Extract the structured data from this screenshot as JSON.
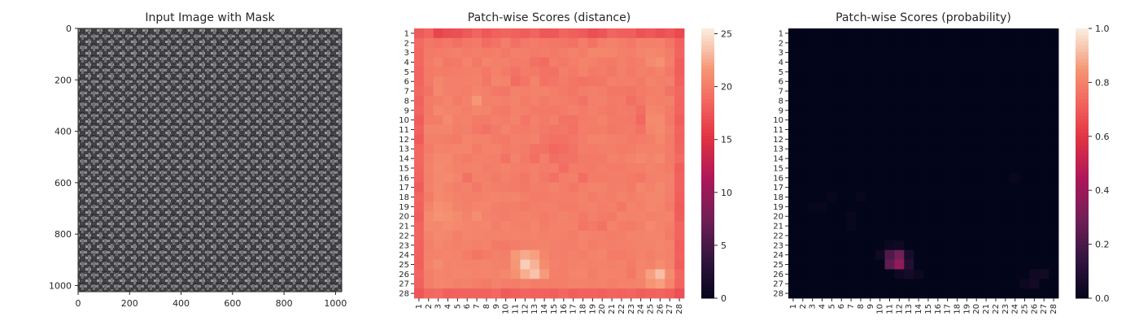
{
  "chart_data": [
    {
      "type": "image",
      "title": "Input Image with Mask",
      "x_ticks": [
        0,
        200,
        400,
        600,
        800,
        1000
      ],
      "y_ticks": [
        0,
        200,
        400,
        600,
        800,
        1000
      ],
      "xlim": [
        0,
        1024
      ],
      "ylim": [
        0,
        1024
      ]
    },
    {
      "type": "heatmap",
      "title": "Patch-wise Scores (distance)",
      "colorbar_ticks": [
        0,
        5,
        10,
        15,
        20,
        25
      ],
      "vmin": 0,
      "vmax": 25.5,
      "colormap": "rocket",
      "grid_size": 28,
      "x_tick_labels": [
        "1",
        "2",
        "3",
        "4",
        "5",
        "6",
        "7",
        "8",
        "9",
        "10",
        "11",
        "12",
        "13",
        "14",
        "15",
        "16",
        "17",
        "18",
        "19",
        "20",
        "21",
        "22",
        "23",
        "24",
        "25",
        "26",
        "27",
        "28"
      ],
      "y_tick_labels": [
        "1",
        "2",
        "3",
        "4",
        "5",
        "6",
        "7",
        "8",
        "9",
        "10",
        "11",
        "12",
        "13",
        "14",
        "15",
        "16",
        "17",
        "18",
        "19",
        "20",
        "21",
        "22",
        "23",
        "24",
        "25",
        "26",
        "27",
        "28"
      ],
      "values": [
        [
          18.0,
          18.6,
          16.6,
          17.1,
          17.3,
          17.9,
          18.6,
          17.8,
          18.4,
          18.6,
          18.4,
          18.1,
          18.6,
          17.7,
          17.8,
          18.7,
          18.3,
          18.0,
          17.2,
          17.6,
          18.7,
          18.3,
          18.3,
          17.5,
          17.8,
          17.3,
          17.7,
          16.8
        ],
        [
          19.0,
          19.8,
          19.6,
          19.8,
          19.3,
          19.8,
          20.0,
          19.1,
          19.6,
          20.3,
          19.4,
          19.9,
          20.1,
          19.9,
          19.8,
          19.7,
          19.4,
          20.2,
          19.5,
          20.3,
          20.5,
          20.2,
          19.9,
          20.5,
          20.4,
          20.5,
          19.7,
          18.4
        ],
        [
          18.9,
          20.0,
          20.1,
          20.3,
          20.4,
          20.1,
          20.3,
          20.1,
          20.3,
          19.9,
          20.4,
          20.3,
          20.0,
          20.2,
          20.0,
          20.2,
          20.5,
          20.2,
          20.8,
          20.8,
          20.7,
          20.4,
          20.3,
          20.7,
          20.9,
          20.7,
          20.2,
          18.7
        ],
        [
          18.8,
          20.1,
          20.6,
          19.8,
          20.0,
          20.6,
          19.9,
          20.6,
          20.4,
          20.4,
          20.1,
          20.2,
          19.4,
          19.1,
          20.2,
          19.9,
          20.3,
          20.6,
          20.4,
          20.1,
          20.0,
          20.4,
          20.1,
          20.3,
          21.1,
          21.4,
          20.3,
          18.3
        ],
        [
          18.6,
          20.0,
          20.2,
          20.1,
          20.2,
          20.3,
          20.4,
          19.9,
          20.5,
          20.0,
          19.6,
          20.1,
          20.0,
          19.6,
          19.4,
          20.3,
          20.0,
          20.5,
          20.0,
          20.1,
          19.8,
          20.4,
          20.0,
          20.4,
          20.2,
          20.6,
          19.9,
          18.3
        ],
        [
          18.6,
          20.0,
          20.8,
          20.4,
          20.4,
          20.4,
          20.5,
          19.8,
          20.7,
          20.6,
          19.1,
          19.7,
          20.6,
          19.6,
          19.7,
          20.1,
          19.7,
          19.5,
          19.7,
          19.8,
          20.4,
          20.3,
          20.3,
          20.0,
          20.6,
          20.3,
          20.4,
          18.5
        ],
        [
          18.9,
          19.6,
          20.9,
          20.4,
          20.4,
          20.2,
          20.7,
          20.4,
          19.9,
          19.8,
          20.5,
          20.3,
          20.5,
          20.5,
          20.2,
          20.0,
          19.7,
          20.2,
          20.4,
          20.2,
          19.8,
          19.8,
          19.7,
          20.1,
          20.2,
          20.4,
          19.6,
          18.8
        ],
        [
          18.5,
          20.1,
          20.3,
          20.7,
          20.1,
          20.5,
          21.8,
          20.4,
          20.5,
          20.3,
          20.6,
          20.1,
          20.4,
          20.0,
          20.3,
          20.2,
          20.0,
          19.6,
          20.3,
          20.4,
          20.0,
          20.1,
          19.3,
          19.9,
          20.5,
          20.3,
          20.4,
          18.6
        ],
        [
          18.6,
          20.0,
          20.9,
          20.6,
          20.6,
          20.3,
          20.8,
          20.6,
          20.1,
          19.9,
          20.5,
          20.3,
          20.0,
          20.0,
          19.9,
          20.1,
          20.4,
          20.1,
          20.4,
          20.1,
          19.9,
          20.1,
          20.0,
          19.2,
          20.8,
          20.6,
          20.0,
          18.6
        ],
        [
          18.1,
          20.1,
          20.2,
          21.1,
          20.4,
          20.5,
          20.0,
          20.0,
          20.4,
          20.2,
          20.6,
          19.7,
          20.4,
          20.0,
          20.4,
          19.6,
          19.6,
          20.1,
          20.2,
          20.5,
          20.0,
          20.0,
          19.9,
          18.8,
          21.1,
          21.1,
          19.9,
          18.2
        ],
        [
          18.5,
          20.6,
          20.7,
          20.7,
          20.2,
          20.4,
          19.9,
          19.6,
          20.0,
          20.6,
          20.1,
          20.1,
          20.3,
          19.9,
          19.7,
          19.8,
          19.4,
          20.2,
          20.1,
          20.2,
          19.8,
          20.0,
          20.1,
          19.5,
          20.8,
          21.1,
          20.3,
          18.6
        ],
        [
          18.0,
          20.4,
          20.4,
          20.2,
          20.0,
          20.7,
          20.5,
          20.5,
          20.0,
          19.9,
          20.4,
          20.3,
          20.5,
          19.7,
          19.4,
          19.4,
          19.8,
          20.2,
          20.6,
          20.6,
          20.4,
          20.3,
          20.0,
          20.1,
          20.3,
          20.9,
          20.1,
          18.5
        ],
        [
          18.8,
          20.1,
          20.6,
          20.5,
          20.7,
          20.7,
          20.1,
          20.5,
          20.6,
          20.1,
          20.3,
          20.1,
          19.6,
          19.5,
          18.9,
          19.1,
          19.6,
          20.3,
          20.1,
          20.3,
          20.3,
          20.1,
          20.2,
          20.5,
          20.5,
          20.5,
          20.1,
          18.7
        ],
        [
          18.8,
          20.4,
          20.9,
          20.9,
          20.4,
          20.1,
          20.4,
          20.4,
          20.3,
          19.6,
          20.6,
          19.9,
          19.3,
          20.3,
          19.2,
          19.6,
          19.6,
          20.0,
          20.0,
          20.0,
          20.5,
          20.3,
          20.6,
          20.9,
          20.6,
          21.0,
          20.1,
          19.0
        ],
        [
          18.7,
          20.5,
          21.1,
          20.8,
          20.5,
          20.5,
          20.6,
          20.2,
          20.3,
          20.6,
          20.3,
          20.2,
          20.4,
          20.1,
          20.2,
          19.2,
          20.1,
          20.1,
          20.0,
          20.2,
          20.1,
          20.1,
          20.3,
          20.3,
          20.6,
          20.4,
          20.1,
          18.3
        ],
        [
          18.5,
          20.4,
          21.0,
          21.1,
          20.7,
          19.6,
          20.5,
          20.4,
          20.0,
          20.4,
          20.1,
          19.8,
          20.4,
          19.9,
          19.4,
          20.2,
          20.4,
          19.2,
          20.1,
          20.1,
          20.2,
          20.2,
          20.0,
          19.8,
          20.4,
          20.5,
          20.4,
          18.4
        ],
        [
          18.1,
          20.5,
          21.1,
          20.6,
          20.3,
          20.5,
          19.9,
          20.5,
          20.3,
          20.2,
          20.1,
          19.9,
          20.3,
          20.2,
          20.6,
          20.2,
          19.8,
          20.3,
          20.6,
          20.6,
          20.2,
          20.3,
          20.0,
          20.8,
          20.5,
          20.9,
          20.4,
          18.4
        ],
        [
          18.7,
          20.1,
          21.0,
          20.8,
          20.5,
          20.3,
          20.4,
          20.5,
          20.7,
          20.6,
          20.7,
          20.3,
          20.1,
          20.1,
          20.2,
          20.2,
          20.2,
          20.5,
          20.1,
          20.4,
          20.2,
          20.6,
          20.3,
          20.5,
          20.8,
          20.8,
          20.3,
          18.3
        ],
        [
          18.5,
          20.6,
          21.5,
          21.2,
          20.6,
          20.4,
          20.7,
          20.7,
          20.3,
          20.2,
          20.3,
          20.0,
          20.3,
          20.4,
          20.4,
          20.1,
          20.1,
          20.4,
          20.5,
          20.2,
          20.4,
          19.8,
          20.6,
          20.4,
          20.8,
          20.7,
          20.1,
          18.1
        ],
        [
          18.2,
          21.1,
          21.6,
          21.4,
          21.1,
          20.6,
          21.3,
          20.6,
          20.4,
          20.2,
          20.4,
          20.5,
          20.4,
          20.1,
          20.3,
          20.6,
          20.3,
          19.9,
          20.4,
          20.1,
          20.0,
          20.6,
          20.5,
          20.6,
          20.4,
          20.6,
          20.6,
          18.2
        ],
        [
          18.6,
          21.0,
          20.9,
          21.2,
          21.0,
          20.8,
          20.7,
          20.8,
          20.3,
          20.7,
          20.4,
          20.3,
          20.7,
          20.2,
          20.5,
          20.5,
          20.5,
          19.7,
          20.0,
          19.6,
          20.6,
          20.2,
          20.1,
          20.4,
          21.0,
          20.6,
          20.3,
          18.7
        ],
        [
          18.7,
          20.6,
          21.0,
          20.8,
          20.3,
          20.8,
          20.7,
          20.6,
          20.6,
          20.5,
          20.6,
          20.5,
          20.6,
          20.4,
          20.5,
          20.4,
          20.2,
          20.6,
          20.4,
          20.4,
          20.2,
          20.3,
          20.6,
          20.6,
          20.7,
          20.7,
          20.1,
          18.6
        ],
        [
          18.5,
          20.4,
          20.9,
          20.6,
          20.4,
          20.6,
          20.4,
          20.6,
          20.0,
          20.0,
          20.2,
          20.4,
          20.5,
          20.6,
          20.4,
          20.3,
          20.3,
          20.6,
          20.2,
          20.4,
          20.3,
          20.4,
          20.4,
          20.6,
          20.6,
          20.8,
          20.6,
          18.3
        ],
        [
          18.5,
          20.5,
          20.6,
          20.7,
          20.6,
          20.2,
          19.7,
          20.1,
          20.4,
          20.3,
          21.9,
          22.6,
          22.2,
          20.8,
          20.3,
          20.3,
          20.5,
          20.3,
          20.6,
          20.7,
          20.1,
          20.1,
          20.3,
          20.6,
          20.3,
          20.7,
          20.5,
          18.5
        ],
        [
          18.3,
          20.6,
          21.2,
          20.6,
          20.7,
          20.6,
          20.6,
          20.7,
          20.5,
          20.4,
          21.8,
          24.2,
          23.0,
          21.2,
          20.5,
          20.3,
          20.5,
          20.6,
          20.4,
          20.5,
          20.4,
          20.6,
          20.1,
          20.7,
          20.5,
          21.2,
          20.6,
          18.2
        ],
        [
          18.6,
          20.3,
          20.8,
          20.6,
          20.8,
          20.7,
          20.6,
          20.7,
          20.6,
          20.9,
          21.5,
          22.8,
          23.7,
          22.0,
          20.4,
          20.3,
          20.7,
          20.7,
          20.2,
          20.6,
          20.6,
          20.5,
          19.9,
          20.8,
          22.2,
          23.5,
          21.2,
          18.9
        ],
        [
          18.4,
          20.3,
          20.8,
          20.7,
          20.4,
          20.5,
          20.2,
          20.0,
          20.5,
          20.2,
          20.2,
          20.5,
          20.2,
          20.3,
          20.2,
          20.3,
          20.5,
          20.5,
          20.4,
          20.5,
          20.3,
          20.5,
          20.5,
          20.6,
          21.7,
          22.1,
          20.7,
          18.6
        ],
        [
          17.7,
          18.9,
          19.0,
          18.3,
          18.5,
          18.4,
          18.5,
          18.4,
          18.8,
          18.0,
          18.3,
          18.6,
          18.4,
          18.5,
          18.3,
          18.9,
          18.2,
          18.4,
          18.5,
          18.3,
          18.7,
          18.5,
          18.6,
          18.2,
          18.4,
          18.6,
          18.3,
          17.3
        ]
      ]
    },
    {
      "type": "heatmap",
      "title": "Patch-wise Scores (probability)",
      "colorbar_ticks": [
        0.0,
        0.2,
        0.4,
        0.6,
        0.8,
        1.0
      ],
      "vmin": 0,
      "vmax": 1,
      "colormap": "rocket",
      "grid_size": 28,
      "x_tick_labels": [
        "1",
        "2",
        "3",
        "4",
        "5",
        "6",
        "7",
        "8",
        "9",
        "10",
        "11",
        "12",
        "13",
        "14",
        "15",
        "16",
        "17",
        "18",
        "19",
        "20",
        "21",
        "22",
        "23",
        "24",
        "25",
        "26",
        "27",
        "28"
      ],
      "y_tick_labels": [
        "1",
        "2",
        "3",
        "4",
        "5",
        "6",
        "7",
        "8",
        "9",
        "10",
        "11",
        "12",
        "13",
        "14",
        "15",
        "16",
        "17",
        "18",
        "19",
        "20",
        "21",
        "22",
        "23",
        "24",
        "25",
        "26",
        "27",
        "28"
      ],
      "background_value": 0.0,
      "hotspots": [
        {
          "row": 24,
          "col": 11,
          "value": 0.22
        },
        {
          "row": 24,
          "col": 12,
          "value": 0.3
        },
        {
          "row": 24,
          "col": 13,
          "value": 0.07
        },
        {
          "row": 25,
          "col": 11,
          "value": 0.26
        },
        {
          "row": 25,
          "col": 12,
          "value": 0.38
        },
        {
          "row": 25,
          "col": 13,
          "value": 0.1
        },
        {
          "row": 26,
          "col": 12,
          "value": 0.04
        },
        {
          "row": 26,
          "col": 13,
          "value": 0.06
        },
        {
          "row": 26,
          "col": 14,
          "value": 0.03
        },
        {
          "row": 24,
          "col": 10,
          "value": 0.04
        },
        {
          "row": 23,
          "col": 11,
          "value": 0.03
        },
        {
          "row": 23,
          "col": 12,
          "value": 0.04
        },
        {
          "row": 26,
          "col": 26,
          "value": 0.04
        },
        {
          "row": 26,
          "col": 27,
          "value": 0.05
        },
        {
          "row": 27,
          "col": 25,
          "value": 0.03
        },
        {
          "row": 27,
          "col": 26,
          "value": 0.05
        },
        {
          "row": 19,
          "col": 3,
          "value": 0.02
        },
        {
          "row": 19,
          "col": 4,
          "value": 0.02
        },
        {
          "row": 18,
          "col": 5,
          "value": 0.02
        },
        {
          "row": 20,
          "col": 7,
          "value": 0.02
        },
        {
          "row": 18,
          "col": 8,
          "value": 0.02
        },
        {
          "row": 21,
          "col": 7,
          "value": 0.02
        },
        {
          "row": 16,
          "col": 24,
          "value": 0.02
        }
      ]
    }
  ]
}
